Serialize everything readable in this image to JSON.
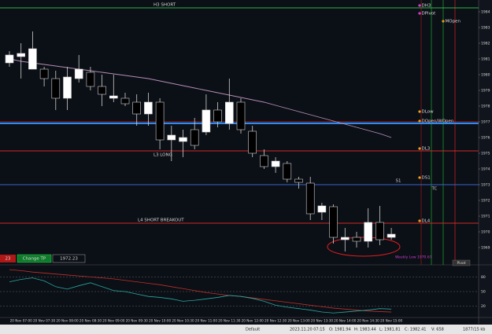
{
  "chart_data": {
    "type": "candlestick",
    "categories": [
      null,
      "20 Nov 07:00",
      null,
      "20 Nov 07:30",
      null,
      "20 Nov 08:00",
      null,
      "20 Nov 08:30",
      null,
      "20 Nov 09:00",
      null,
      "20 Nov 09:30",
      null,
      "20 Nov 10:00",
      null,
      "20 Nov 10:30",
      null,
      "20 Nov 11:00",
      null,
      "20 Nov 11:30",
      null,
      "20 Nov 12:00",
      null,
      "20 Nov 12:30",
      null,
      "20 Nov 13:00",
      null,
      "20 Nov 13:30",
      null,
      "20 Nov 14:00",
      null,
      "20 Nov 14:30",
      null,
      "20 Nov 15:00"
    ],
    "open": [
      1980.75,
      1981.15,
      1980.35,
      1980.35,
      1979.75,
      1978.5,
      1979.75,
      1980.15,
      1979.25,
      1978.5,
      1978.5,
      1978.25,
      1977.5,
      1978.25,
      1975.85,
      1975.75,
      1976.5,
      1976.35,
      1977.75,
      1976.9,
      1978.25,
      1976.4,
      1974.85,
      1974.15,
      1974.35,
      1973.35,
      1973.1,
      1971.25,
      1971.6,
      1969.5,
      1969.65,
      1969.4,
      1970.6,
      1969.65
    ],
    "high": [
      1981.5,
      1982.0,
      1982.75,
      1980.5,
      1980.25,
      1980.5,
      1981.25,
      1980.5,
      1980.0,
      1980.0,
      1978.85,
      1978.75,
      1978.85,
      1978.5,
      1976.75,
      1976.5,
      1977.25,
      1978.75,
      1978.25,
      1979.75,
      1978.5,
      1976.75,
      1975.25,
      1974.75,
      1974.5,
      1973.5,
      1973.5,
      1971.85,
      1971.75,
      1970.25,
      1970.0,
      1971.5,
      1971.65,
      1970.25
    ],
    "low": [
      1980.5,
      1979.75,
      1980.35,
      1979.25,
      1977.75,
      1977.75,
      1979.5,
      1979.0,
      1978.0,
      1978.25,
      1978.0,
      1976.75,
      1976.75,
      1975.25,
      1974.5,
      1974.75,
      1975.25,
      1976.15,
      1976.65,
      1976.5,
      1976.25,
      1974.75,
      1974.0,
      1973.75,
      1973.15,
      1972.75,
      1970.75,
      1970.75,
      1969.25,
      1968.75,
      1969.0,
      1969.0,
      1969.15,
      1969.5
    ],
    "close": [
      1981.25,
      1981.35,
      1981.65,
      1979.75,
      1978.5,
      1979.85,
      1980.35,
      1979.25,
      1978.75,
      1978.65,
      1978.15,
      1977.5,
      1978.25,
      1975.85,
      1976.15,
      1976.0,
      1975.5,
      1977.75,
      1977.0,
      1978.25,
      1976.5,
      1975.0,
      1974.15,
      1974.5,
      1973.35,
      1973.15,
      1971.15,
      1971.65,
      1969.65,
      1969.65,
      1969.4,
      1970.6,
      1969.5,
      1969.85
    ],
    "up_color": "#ffffff",
    "down_color": "#000000",
    "ylim": [
      1968,
      1984.5
    ],
    "yticks": [
      1969,
      1970,
      1971,
      1972,
      1973,
      1974,
      1975,
      1976,
      1977,
      1978,
      1979,
      1980,
      1981,
      1982,
      1983,
      1984
    ],
    "moving_average": {
      "color": "#b58fb5",
      "values": [
        1981.0,
        1980.85,
        1980.75,
        1980.65,
        1980.55,
        1980.45,
        1980.35,
        1980.25,
        1980.15,
        1980.05,
        1979.95,
        1979.85,
        1979.75,
        1979.6,
        1979.45,
        1979.3,
        1979.15,
        1979.0,
        1978.85,
        1978.7,
        1978.55,
        1978.4,
        1978.25,
        1978.05,
        1977.85,
        1977.65,
        1977.45,
        1977.25,
        1977.05,
        1976.85,
        1976.65,
        1976.45,
        1976.25,
        1976.0
      ]
    },
    "levels": [
      {
        "label": "H3 SHORT",
        "value": 1984.25,
        "color": "#2fb24a"
      },
      {
        "value": 1977.0,
        "color": "#b22222"
      },
      {
        "value": 1976.9,
        "color": "#1e8fff"
      },
      {
        "label": "L3 LONG",
        "value": 1975.15,
        "color": "#d02828"
      },
      {
        "value": 1973.0,
        "color": "#3a64c8"
      },
      {
        "label": "L4 SHORT BREAKOUT",
        "value": 1970.55,
        "color": "#d02828"
      }
    ],
    "pivot_labels": [
      {
        "label": "DH3",
        "value": 1984.4,
        "color": "#d040d0"
      },
      {
        "label": "DPivot",
        "value": 1983.9,
        "color": "#d040d0"
      },
      {
        "label": "MOpen",
        "value": 1983.4,
        "color": "#e8a020"
      },
      {
        "label": "DLow",
        "value": 1977.65,
        "color": "#e8a020"
      },
      {
        "label": "DOpen/WOpen",
        "value": 1977.05,
        "color": "#e8a020"
      },
      {
        "label": "DL3",
        "value": 1975.3,
        "color": "#e8a020"
      },
      {
        "label": "S1",
        "value": 1973.25
      },
      {
        "label": "DS1",
        "value": 1973.45,
        "color": "#e8a020"
      },
      {
        "label": "TC",
        "value": 1972.75
      },
      {
        "label": "DL4",
        "value": 1970.7,
        "color": "#e8a020"
      }
    ],
    "annotations": [
      "Weekly Low 1970.67",
      "Pivot"
    ],
    "oscillator": {
      "ylim": [
        0,
        100
      ],
      "yticks": [
        20,
        50,
        80
      ],
      "series": [
        {
          "color": "#c0302a",
          "values": [
            95,
            93,
            90,
            88,
            86,
            84,
            82,
            80,
            78,
            76,
            73,
            70,
            67,
            64,
            60,
            56,
            52,
            48,
            45,
            42,
            40,
            37,
            34,
            31,
            28,
            25,
            22,
            19,
            16,
            14,
            12,
            10,
            9,
            8
          ]
        },
        {
          "color": "#2aa8a0",
          "values": [
            70,
            75,
            78,
            72,
            60,
            55,
            62,
            68,
            60,
            52,
            50,
            45,
            40,
            38,
            35,
            30,
            32,
            35,
            38,
            42,
            40,
            36,
            30,
            22,
            18,
            15,
            12,
            8,
            6,
            8,
            10,
            12,
            15,
            14
          ]
        }
      ]
    }
  },
  "order_bar": {
    "quantity": "23",
    "button": "Change TP",
    "price": "1972.23"
  },
  "status_bar": [
    "Default",
    "2023.11.20 07:15",
    "O: 1981.94",
    "H: 1983.44",
    "L: 1981.81",
    "C: 1982.41",
    "V: 658",
    "1877/15 kb"
  ]
}
